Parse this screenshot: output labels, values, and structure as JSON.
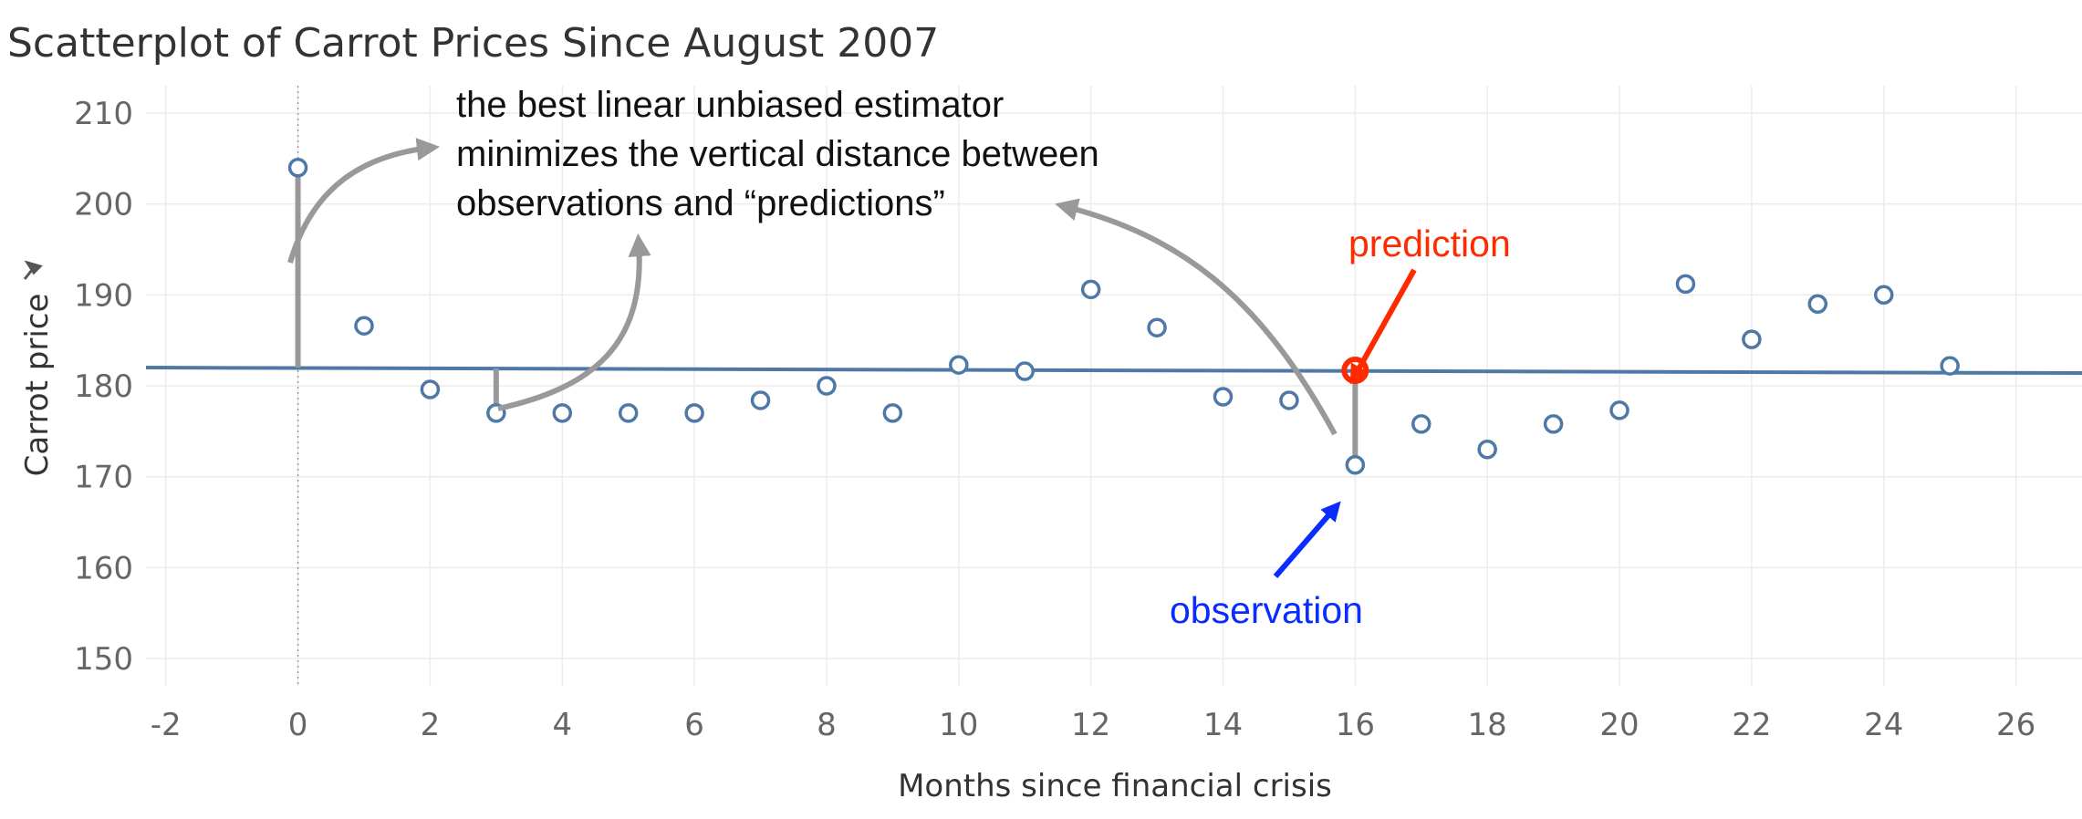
{
  "chart_data": {
    "type": "scatter",
    "title": "Scatterplot of Carrot Prices Since August 2007",
    "xlabel": "Months since financial crisis",
    "ylabel": "Carrot price",
    "xlim": [
      -2.3,
      27
    ],
    "ylim": [
      147,
      213
    ],
    "xticks": [
      -2,
      0,
      2,
      4,
      6,
      8,
      10,
      12,
      14,
      16,
      18,
      20,
      22,
      24,
      26
    ],
    "yticks": [
      150,
      160,
      170,
      180,
      190,
      200,
      210
    ],
    "grid": true,
    "series": [
      {
        "x": [
          0,
          1,
          2,
          3,
          4,
          5,
          6,
          7,
          8,
          9,
          10,
          11,
          12,
          13,
          14,
          15,
          16,
          17,
          18,
          19,
          20,
          21,
          22,
          23,
          24,
          25
        ],
        "y": [
          204,
          186.6,
          179.6,
          177,
          177,
          177,
          177,
          178.4,
          180,
          177,
          182.3,
          181.6,
          190.6,
          186.4,
          178.8,
          178.4,
          171.3,
          175.8,
          173,
          175.8,
          177.3,
          191.2,
          185.1,
          189,
          190,
          182.2
        ]
      }
    ],
    "trend_line": {
      "x": [
        -2.3,
        27
      ],
      "y": [
        182.0,
        181.4
      ]
    },
    "reference_line_x": 0,
    "annotations": {
      "text_lines": [
        "the best linear unbiased estimator",
        "minimizes the vertical distance between",
        "observations and “predictions”"
      ],
      "prediction_label": "prediction",
      "observation_label": "observation",
      "highlight_x": 16,
      "highlight_prediction_y": 181.7,
      "highlight_observation_y": 171.3,
      "residuals": [
        {
          "x": 0,
          "y_from": 182.0,
          "y_to": 204
        },
        {
          "x": 3,
          "y_from": 181.9,
          "y_to": 177
        },
        {
          "x": 16,
          "y_from": 181.7,
          "y_to": 171.3
        }
      ]
    },
    "colors": {
      "points": "#4e79a7",
      "trend": "#4e79a7",
      "annotation_arrows": "#999999",
      "prediction": "#ff2a00",
      "observation": "#0a2cff"
    },
    "icons": {
      "ylabel_pin": "pin-icon"
    }
  }
}
